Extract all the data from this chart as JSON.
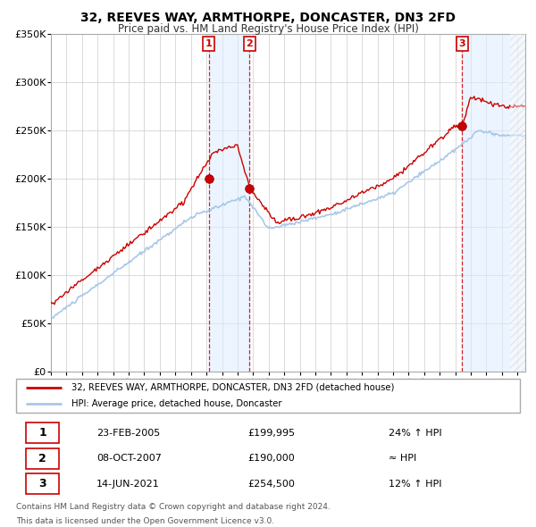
{
  "title": "32, REEVES WAY, ARMTHORPE, DONCASTER, DN3 2FD",
  "subtitle": "Price paid vs. HM Land Registry's House Price Index (HPI)",
  "ylim": [
    0,
    350000
  ],
  "yticks": [
    0,
    50000,
    100000,
    150000,
    200000,
    250000,
    300000,
    350000
  ],
  "ytick_labels": [
    "£0",
    "£50K",
    "£100K",
    "£150K",
    "£200K",
    "£250K",
    "£300K",
    "£350K"
  ],
  "background_color": "#ffffff",
  "plot_bg_color": "#ffffff",
  "grid_color": "#cccccc",
  "hpi_line_color": "#a8c8e8",
  "price_line_color": "#cc0000",
  "sale_marker_color": "#cc0000",
  "dashed_line_color": "#cc0000",
  "shade_color": "#ddeeff",
  "sale1_x": 2005.14,
  "sale1_y": 199995,
  "sale2_x": 2007.77,
  "sale2_y": 190000,
  "sale3_x": 2021.45,
  "sale3_y": 254500,
  "sale1_date": "23-FEB-2005",
  "sale1_price": "£199,995",
  "sale1_hpi": "24% ↑ HPI",
  "sale2_date": "08-OCT-2007",
  "sale2_price": "£190,000",
  "sale2_hpi": "≈ HPI",
  "sale3_date": "14-JUN-2021",
  "sale3_price": "£254,500",
  "sale3_hpi": "12% ↑ HPI",
  "legend_line1": "32, REEVES WAY, ARMTHORPE, DONCASTER, DN3 2FD (detached house)",
  "legend_line2": "HPI: Average price, detached house, Doncaster",
  "footer1": "Contains HM Land Registry data © Crown copyright and database right 2024.",
  "footer2": "This data is licensed under the Open Government Licence v3.0.",
  "xmin": 1995,
  "xmax": 2025
}
